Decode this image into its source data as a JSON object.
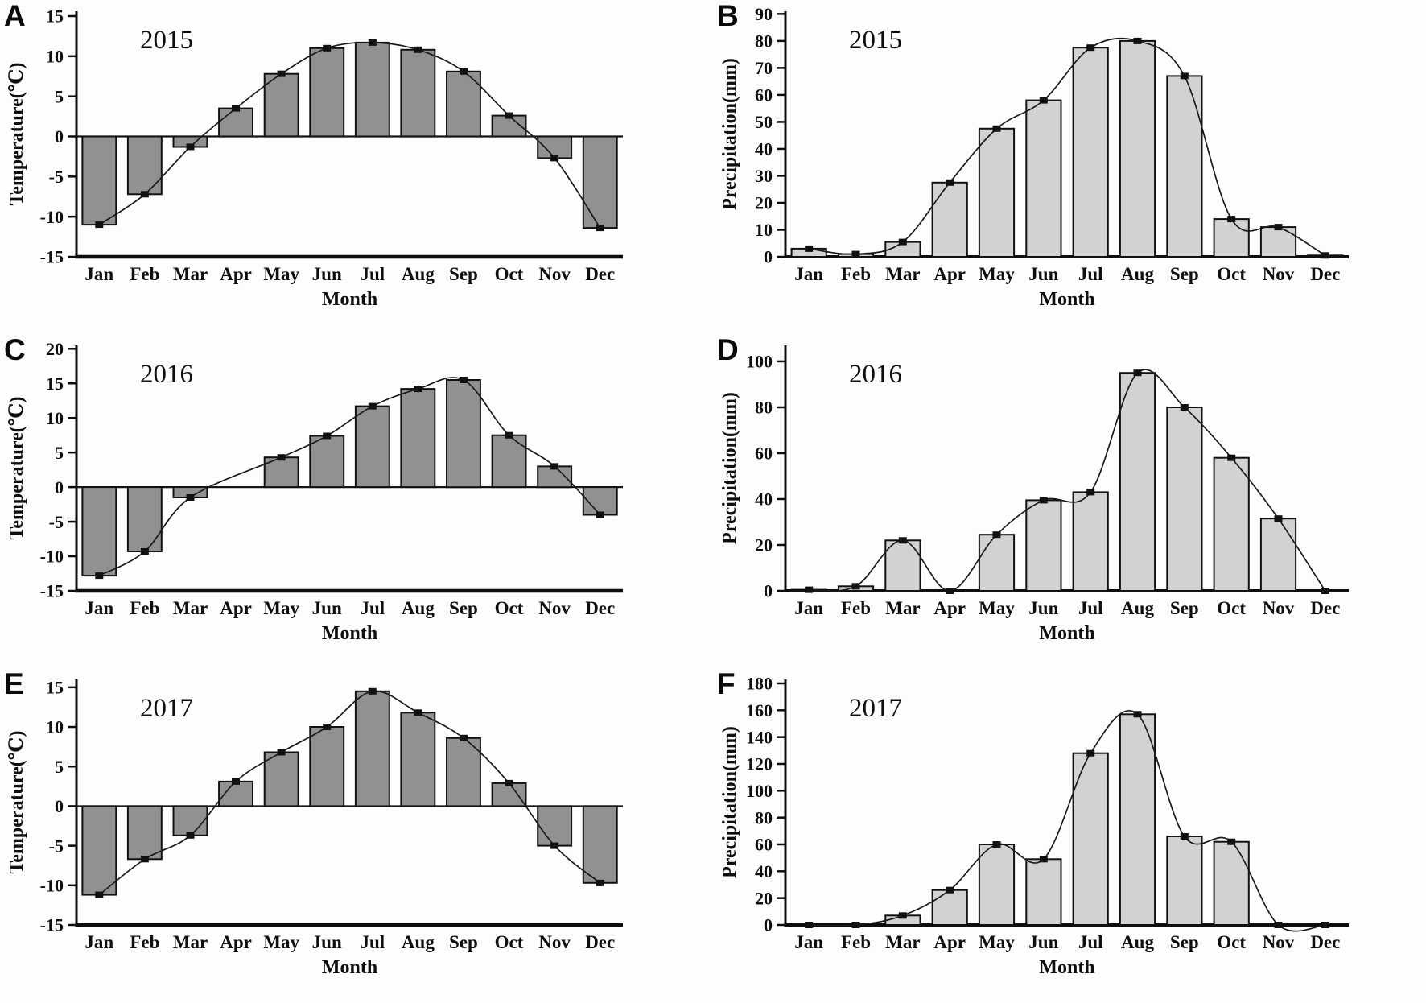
{
  "figure": {
    "description_visible_text_only": true,
    "background": "#fdfdfd"
  },
  "chart_data": [
    {
      "panel": "A",
      "type": "bar+line",
      "title": "2015",
      "xlabel": "Month",
      "ylabel": "Temperature(℃)",
      "categories": [
        "Jan",
        "Feb",
        "Mar",
        "Apr",
        "May",
        "Jun",
        "Jul",
        "Aug",
        "Sep",
        "Oct",
        "Nov",
        "Dec"
      ],
      "values": [
        -11,
        -7.2,
        -1.3,
        3.5,
        7.8,
        11,
        11.7,
        10.8,
        8.1,
        2.6,
        -2.7,
        -11.4
      ],
      "yticks": [
        -15,
        -10,
        -5,
        0,
        5,
        10,
        15
      ],
      "ylim": [
        -15,
        15.6
      ],
      "bar_fill": "#919191",
      "line_color": "#1a1a1a",
      "marker_color": "#111111"
    },
    {
      "panel": "B",
      "type": "bar+line",
      "title": "2015",
      "xlabel": "Month",
      "ylabel": "Precipitation(mm)",
      "categories": [
        "Jan",
        "Feb",
        "Mar",
        "Apr",
        "May",
        "Jun",
        "Jul",
        "Aug",
        "Sep",
        "Oct",
        "Nov",
        "Dec"
      ],
      "values": [
        3,
        1,
        5.5,
        27.5,
        47.5,
        58,
        77.5,
        80,
        67,
        14,
        11,
        0.5
      ],
      "yticks": [
        0,
        10,
        20,
        30,
        40,
        50,
        60,
        70,
        80,
        90
      ],
      "ylim": [
        0,
        91
      ],
      "bar_fill": "#d2d2d2",
      "line_color": "#1a1a1a",
      "marker_color": "#111111"
    },
    {
      "panel": "C",
      "type": "bar+line",
      "title": "2016",
      "xlabel": "Month",
      "ylabel": "Temperature(℃)",
      "categories": [
        "Jan",
        "Feb",
        "Mar",
        "Apr",
        "May",
        "Jun",
        "Jul",
        "Aug",
        "Sep",
        "Oct",
        "Nov",
        "Dec"
      ],
      "values": [
        -12.8,
        -9.3,
        -1.5,
        null,
        4.3,
        7.4,
        11.7,
        14.2,
        15.5,
        7.5,
        3,
        -4
      ],
      "yticks": [
        -15,
        -10,
        -5,
        0,
        5,
        10,
        15,
        20
      ],
      "ylim": [
        -15,
        20.5
      ],
      "bar_fill": "#919191",
      "line_color": "#1a1a1a",
      "marker_color": "#111111"
    },
    {
      "panel": "D",
      "type": "bar+line",
      "title": "2016",
      "xlabel": "Month",
      "ylabel": "Precipitation(mm)",
      "categories": [
        "Jan",
        "Feb",
        "Mar",
        "Apr",
        "May",
        "Jun",
        "Jul",
        "Aug",
        "Sep",
        "Oct",
        "Nov",
        "Dec"
      ],
      "values": [
        0.5,
        2,
        22,
        0,
        24.5,
        39.5,
        43,
        95,
        80,
        58,
        31.5,
        0
      ],
      "yticks": [
        0,
        20,
        40,
        60,
        80,
        100
      ],
      "ylim": [
        0,
        107
      ],
      "bar_fill": "#d2d2d2",
      "line_color": "#1a1a1a",
      "marker_color": "#111111"
    },
    {
      "panel": "E",
      "type": "bar+line",
      "title": "2017",
      "xlabel": "Month",
      "ylabel": "Temperature(℃)",
      "categories": [
        "Jan",
        "Feb",
        "Mar",
        "Apr",
        "May",
        "Jun",
        "Jul",
        "Aug",
        "Sep",
        "Oct",
        "Nov",
        "Dec"
      ],
      "values": [
        -11.2,
        -6.7,
        -3.7,
        3.1,
        6.8,
        10,
        14.5,
        11.8,
        8.6,
        2.9,
        -5,
        -9.7
      ],
      "yticks": [
        -15,
        -10,
        -5,
        0,
        5,
        10,
        15
      ],
      "ylim": [
        -15,
        16
      ],
      "bar_fill": "#919191",
      "line_color": "#1a1a1a",
      "marker_color": "#111111"
    },
    {
      "panel": "F",
      "type": "bar+line",
      "title": "2017",
      "xlabel": "Month",
      "ylabel": "Precipitation(mm)",
      "categories": [
        "Jan",
        "Feb",
        "Mar",
        "Apr",
        "May",
        "Jun",
        "Jul",
        "Aug",
        "Sep",
        "Oct",
        "Nov",
        "Dec"
      ],
      "values": [
        0,
        0,
        7,
        26,
        60,
        49,
        128,
        157,
        66,
        62,
        0,
        0
      ],
      "yticks": [
        0,
        20,
        40,
        60,
        80,
        100,
        120,
        140,
        160,
        180
      ],
      "ylim": [
        0,
        183
      ],
      "bar_fill": "#d2d2d2",
      "line_color": "#1a1a1a",
      "marker_color": "#111111"
    }
  ]
}
